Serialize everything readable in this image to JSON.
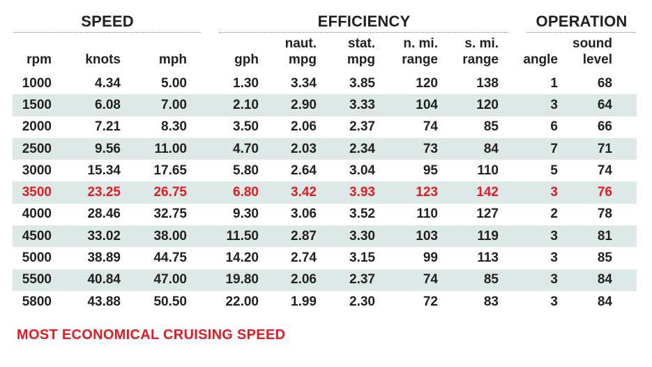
{
  "groups": {
    "speed": "SPEED",
    "efficiency": "EFFICIENCY",
    "operation": "OPERATION"
  },
  "columns": [
    {
      "key": "rpm",
      "line1": "",
      "line2": "rpm"
    },
    {
      "key": "knots",
      "line1": "",
      "line2": "knots"
    },
    {
      "key": "mph",
      "line1": "",
      "line2": "mph"
    },
    {
      "key": "gph",
      "line1": "",
      "line2": "gph"
    },
    {
      "key": "naut_mpg",
      "line1": "naut.",
      "line2": "mpg"
    },
    {
      "key": "stat_mpg",
      "line1": "stat.",
      "line2": "mpg"
    },
    {
      "key": "n_mi_range",
      "line1": "n. mi.",
      "line2": "range"
    },
    {
      "key": "s_mi_range",
      "line1": "s. mi.",
      "line2": "range"
    },
    {
      "key": "angle",
      "line1": "",
      "line2": "angle"
    },
    {
      "key": "sound_level",
      "line1": "sound",
      "line2": "level"
    }
  ],
  "rows": [
    [
      "1000",
      "4.34",
      "5.00",
      "1.30",
      "3.34",
      "3.85",
      "120",
      "138",
      "1",
      "68"
    ],
    [
      "1500",
      "6.08",
      "7.00",
      "2.10",
      "2.90",
      "3.33",
      "104",
      "120",
      "3",
      "64"
    ],
    [
      "2000",
      "7.21",
      "8.30",
      "3.50",
      "2.06",
      "2.37",
      "74",
      "85",
      "6",
      "66"
    ],
    [
      "2500",
      "9.56",
      "11.00",
      "4.70",
      "2.03",
      "2.34",
      "73",
      "84",
      "7",
      "71"
    ],
    [
      "3000",
      "15.34",
      "17.65",
      "5.80",
      "2.64",
      "3.04",
      "95",
      "110",
      "5",
      "74"
    ],
    [
      "3500",
      "23.25",
      "26.75",
      "6.80",
      "3.42",
      "3.93",
      "123",
      "142",
      "3",
      "76"
    ],
    [
      "4000",
      "28.46",
      "32.75",
      "9.30",
      "3.06",
      "3.52",
      "110",
      "127",
      "2",
      "78"
    ],
    [
      "4500",
      "33.02",
      "38.00",
      "11.50",
      "2.87",
      "3.30",
      "103",
      "119",
      "3",
      "81"
    ],
    [
      "5000",
      "38.89",
      "44.75",
      "14.20",
      "2.74",
      "3.15",
      "99",
      "113",
      "3",
      "85"
    ],
    [
      "5500",
      "40.84",
      "47.00",
      "19.80",
      "2.06",
      "2.37",
      "74",
      "85",
      "3",
      "84"
    ],
    [
      "5800",
      "43.88",
      "50.50",
      "22.00",
      "1.99",
      "2.30",
      "72",
      "83",
      "3",
      "84"
    ]
  ],
  "highlight_row": 5,
  "highlight_color": "#e01b24",
  "stripe_color": "#dde9e6",
  "footnote": "MOST ECONOMICAL CRUISING SPEED"
}
